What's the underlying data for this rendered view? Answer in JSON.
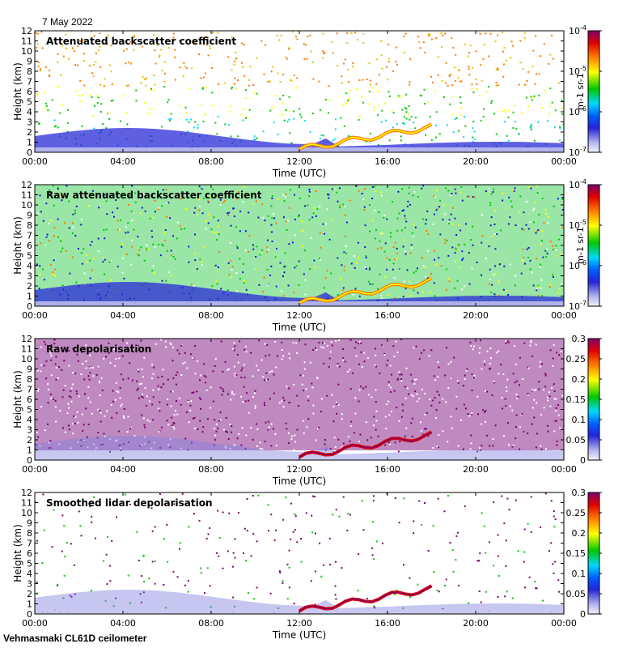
{
  "header": {
    "date": "7 May 2022"
  },
  "footer": {
    "instrument": "Vehmasmaki CL61D ceilometer"
  },
  "colors": {
    "scale": [
      "#e6e6f8",
      "#1515c8",
      "#00d8ff",
      "#00c800",
      "#ffff00",
      "#ff7800",
      "#e00000",
      "#780070"
    ]
  },
  "chart_data": [
    {
      "type": "heatmap",
      "title": "Attenuated backscatter coefficient",
      "xlabel": "Time (UTC)",
      "ylabel": "Height (km)",
      "x_ticks": [
        "00:00",
        "04:00",
        "08:00",
        "12:00",
        "16:00",
        "20:00",
        "00:00"
      ],
      "y_ticks": [
        "0",
        "1",
        "2",
        "3",
        "4",
        "5",
        "6",
        "7",
        "8",
        "9",
        "10",
        "11",
        "12"
      ],
      "ylim": [
        0,
        12
      ],
      "colorbar": {
        "scale": "log",
        "ticks": [
          "10-7",
          "10-6",
          "10-5",
          "10-4"
        ],
        "unit": "m-1 sr-1"
      }
    },
    {
      "type": "heatmap",
      "title": "Raw attenuated backscatter coefficient",
      "xlabel": "Time (UTC)",
      "ylabel": "Height (km)",
      "x_ticks": [
        "00:00",
        "04:00",
        "08:00",
        "12:00",
        "16:00",
        "20:00",
        "00:00"
      ],
      "y_ticks": [
        "0",
        "1",
        "2",
        "3",
        "4",
        "5",
        "6",
        "7",
        "8",
        "9",
        "10",
        "11",
        "12"
      ],
      "ylim": [
        0,
        12
      ],
      "colorbar": {
        "scale": "log",
        "ticks": [
          "10-7",
          "10-6",
          "10-5",
          "10-4"
        ],
        "unit": "m-1 sr-1"
      }
    },
    {
      "type": "heatmap",
      "title": "Raw depolarisation",
      "xlabel": "Time (UTC)",
      "ylabel": "Height (km)",
      "x_ticks": [
        "00:00",
        "04:00",
        "08:00",
        "12:00",
        "16:00",
        "20:00",
        "00:00"
      ],
      "y_ticks": [
        "0",
        "1",
        "2",
        "3",
        "4",
        "5",
        "6",
        "7",
        "8",
        "9",
        "10",
        "11",
        "12"
      ],
      "ylim": [
        0,
        12
      ],
      "colorbar": {
        "scale": "linear",
        "ticks": [
          "0",
          "0.05",
          "0.1",
          "0.15",
          "0.2",
          "0.25",
          "0.3"
        ],
        "unit": ""
      }
    },
    {
      "type": "heatmap",
      "title": "Smoothed lidar depolarisation",
      "xlabel": "Time (UTC)",
      "ylabel": "Height (km)",
      "x_ticks": [
        "00:00",
        "04:00",
        "08:00",
        "12:00",
        "16:00",
        "20:00",
        "00:00"
      ],
      "y_ticks": [
        "0",
        "1",
        "2",
        "3",
        "4",
        "5",
        "6",
        "7",
        "8",
        "9",
        "10",
        "11",
        "12"
      ],
      "ylim": [
        0,
        12
      ],
      "colorbar": {
        "scale": "linear",
        "ticks": [
          "0",
          "0.05",
          "0.1",
          "0.15",
          "0.2",
          "0.25",
          "0.3"
        ],
        "unit": ""
      }
    }
  ]
}
